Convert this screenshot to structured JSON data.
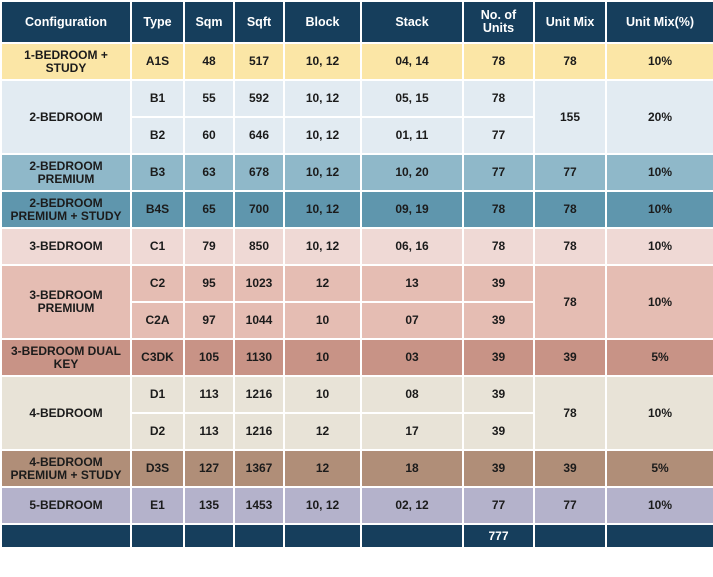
{
  "table": {
    "header": [
      "Configuration",
      "Type",
      "Sqm",
      "Sqft",
      "Block",
      "Stack",
      "No. of Units",
      "Unit Mix",
      "Unit Mix(%)"
    ],
    "groups": [
      {
        "configuration": "1-BEDROOM + STUDY",
        "unit_mix": 78,
        "unit_mix_pct": "10%",
        "rows": [
          {
            "type": "A1S",
            "sqm": 48,
            "sqft": 517,
            "block": "10, 12",
            "stack": "04, 14",
            "units": 78
          }
        ]
      },
      {
        "configuration": "2-BEDROOM",
        "unit_mix": 155,
        "unit_mix_pct": "20%",
        "rows": [
          {
            "type": "B1",
            "sqm": 55,
            "sqft": 592,
            "block": "10, 12",
            "stack": "05, 15",
            "units": 78
          },
          {
            "type": "B2",
            "sqm": 60,
            "sqft": 646,
            "block": "10, 12",
            "stack": "01, 11",
            "units": 77
          }
        ]
      },
      {
        "configuration": "2-BEDROOM PREMIUM",
        "unit_mix": 77,
        "unit_mix_pct": "10%",
        "rows": [
          {
            "type": "B3",
            "sqm": 63,
            "sqft": 678,
            "block": "10, 12",
            "stack": "10, 20",
            "units": 77
          }
        ]
      },
      {
        "configuration": "2-BEDROOM PREMIUM + STUDY",
        "unit_mix": 78,
        "unit_mix_pct": "10%",
        "rows": [
          {
            "type": "B4S",
            "sqm": 65,
            "sqft": 700,
            "block": "10, 12",
            "stack": "09, 19",
            "units": 78
          }
        ]
      },
      {
        "configuration": "3-BEDROOM",
        "unit_mix": 78,
        "unit_mix_pct": "10%",
        "rows": [
          {
            "type": "C1",
            "sqm": 79,
            "sqft": 850,
            "block": "10, 12",
            "stack": "06, 16",
            "units": 78
          }
        ]
      },
      {
        "configuration": "3-BEDROOM PREMIUM",
        "unit_mix": 78,
        "unit_mix_pct": "10%",
        "rows": [
          {
            "type": "C2",
            "sqm": 95,
            "sqft": 1023,
            "block": "12",
            "stack": "13",
            "units": 39
          },
          {
            "type": "C2A",
            "sqm": 97,
            "sqft": 1044,
            "block": "10",
            "stack": "07",
            "units": 39
          }
        ]
      },
      {
        "configuration": "3-BEDROOM DUAL KEY",
        "unit_mix": 39,
        "unit_mix_pct": "5%",
        "rows": [
          {
            "type": "C3DK",
            "sqm": 105,
            "sqft": 1130,
            "block": "10",
            "stack": "03",
            "units": 39
          }
        ]
      },
      {
        "configuration": "4-BEDROOM",
        "unit_mix": 78,
        "unit_mix_pct": "10%",
        "rows": [
          {
            "type": "D1",
            "sqm": 113,
            "sqft": 1216,
            "block": "10",
            "stack": "08",
            "units": 39
          },
          {
            "type": "D2",
            "sqm": 113,
            "sqft": 1216,
            "block": "12",
            "stack": "17",
            "units": 39
          }
        ]
      },
      {
        "configuration": "4-BEDROOM PREMIUM + STUDY",
        "unit_mix": 39,
        "unit_mix_pct": "5%",
        "rows": [
          {
            "type": "D3S",
            "sqm": 127,
            "sqft": 1367,
            "block": "12",
            "stack": "18",
            "units": 39
          }
        ]
      },
      {
        "configuration": "5-BEDROOM",
        "unit_mix": 77,
        "unit_mix_pct": "10%",
        "rows": [
          {
            "type": "E1",
            "sqm": 135,
            "sqft": 1453,
            "block": "10, 12",
            "stack": "02, 12",
            "units": 77
          }
        ]
      }
    ],
    "total": 777
  }
}
